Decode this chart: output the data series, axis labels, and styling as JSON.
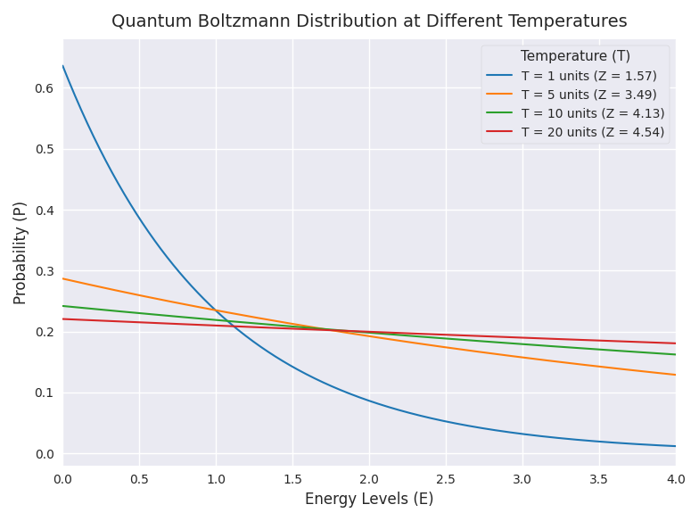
{
  "title": "Quantum Boltzmann Distribution at Different Temperatures",
  "xlabel": "Energy Levels (E)",
  "ylabel": "Probability (P)",
  "temperatures": [
    1,
    5,
    10,
    20
  ],
  "colors": [
    "#1f77b4",
    "#ff7f0e",
    "#2ca02c",
    "#d62728"
  ],
  "legend_title": "Temperature (T)",
  "legend_labels": [
    "T = 1 units (Z = 1.57)",
    "T = 5 units (Z = 3.49)",
    "T = 10 units (Z = 4.13)",
    "T = 20 units (Z = 4.54)"
  ],
  "x_min": 0.0,
  "x_max": 4.0,
  "y_min": -0.02,
  "y_max": 0.68,
  "figsize": [
    7.84,
    5.84
  ],
  "dpi": 100,
  "num_points": 500,
  "linewidth": 1.5,
  "title_fontsize": 14,
  "label_fontsize": 12
}
